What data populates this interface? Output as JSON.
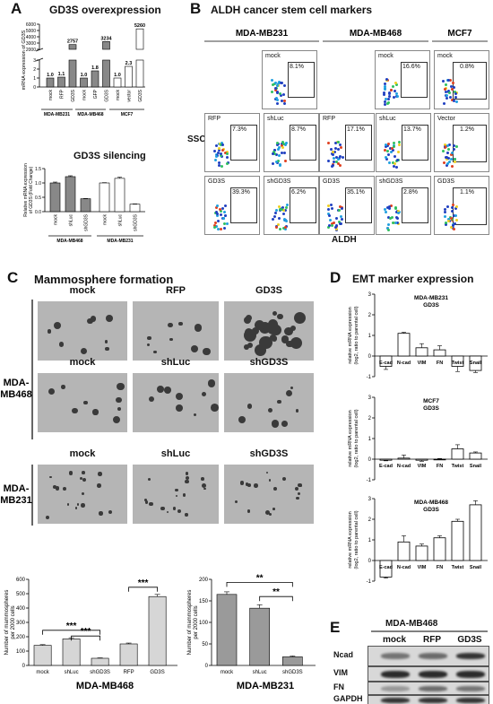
{
  "panels": {
    "A": {
      "label": "A",
      "overexpression": {
        "title": "GD3S overexpression",
        "ylabel": "mRNA expression of GD3S",
        "groups": [
          "MDA-MB231",
          "MDA-MB468",
          "MCF7"
        ],
        "chart_data": {
          "type": "bar",
          "categories": [
            "mock",
            "RFP",
            "GD3S",
            "mock",
            "GFP",
            "GD3S",
            "mock",
            "vector",
            "GD3S"
          ],
          "values": [
            1.0,
            1.1,
            2757,
            1.0,
            1.8,
            3234,
            1.0,
            2.3,
            5260
          ],
          "data_labels": [
            "1.0",
            "1.1",
            "2757",
            "1.0",
            "1.8",
            "3234",
            "1.0",
            "2.3",
            "5260"
          ],
          "bar_colors": [
            "#888888",
            "#888888",
            "#888888",
            "#888888",
            "#888888",
            "#888888",
            "#ffffff",
            "#ffffff",
            "#ffffff"
          ],
          "lower_ticks": [
            "0",
            "1",
            "2",
            "3"
          ],
          "upper_ticks": [
            "2000",
            "3000",
            "4000",
            "5000",
            "6000"
          ],
          "axis_break": true
        }
      },
      "silencing": {
        "title": "GD3S silencing",
        "ylabel": "Relative mRNA expression of GD3S (Fold Change)",
        "groups": [
          "MDA-MB468",
          "MDA-MB231"
        ],
        "chart_data": {
          "type": "bar",
          "categories": [
            "mock",
            "shLuc",
            "shGD3S",
            "mock",
            "shLuc",
            "shGD3S"
          ],
          "values": [
            1.0,
            1.22,
            0.45,
            1.0,
            1.16,
            0.26
          ],
          "errors": [
            0.03,
            0.03,
            0.01,
            0.01,
            0.04,
            0.01
          ],
          "bar_colors": [
            "#888888",
            "#888888",
            "#888888",
            "#ffffff",
            "#ffffff",
            "#ffffff"
          ],
          "yticks": [
            "0.0",
            "0.5",
            "1.0",
            "1.5"
          ],
          "ylim": [
            0,
            1.5
          ]
        }
      }
    },
    "B": {
      "label": "B",
      "title": "ALDH cancer stem cell markers",
      "xlabel": "ALDH",
      "ylabel": "SSC",
      "cols": [
        "MDA-MB231",
        "MDA-MB468",
        "MCF7"
      ],
      "axis_x": "FITC-A :: FITC - Area",
      "axis_y": "SSC-A :: SSC - Area",
      "rows": [
        [
          {
            "label": "mock",
            "pct": "8.1%"
          },
          {
            "label": "mock",
            "pct": "16.6%"
          },
          {
            "label": "mock",
            "pct": "0.8%"
          }
        ],
        [
          {
            "label": "RFP",
            "pct": "7.3%"
          },
          {
            "label": "shLuc",
            "pct": "8.7%"
          },
          {
            "label": "RFP",
            "pct": "17.1%"
          },
          {
            "label": "shLuc",
            "pct": "13.7%"
          },
          {
            "label": "Vector",
            "pct": "1.2%"
          }
        ],
        [
          {
            "label": "GD3S",
            "pct": "39.3%"
          },
          {
            "label": "shGD3S",
            "pct": "6.2%"
          },
          {
            "label": "GD3S",
            "pct": "35.1%"
          },
          {
            "label": "shGD3S",
            "pct": "2.8%"
          },
          {
            "label": "GD3S",
            "pct": "1.1%"
          }
        ]
      ]
    },
    "C": {
      "label": "C",
      "title": "Mammosphere formation",
      "row_groups": [
        "MDA-MB468",
        "MDA-MB231"
      ],
      "image_rows": [
        [
          "mock",
          "RFP",
          "GD3S"
        ],
        [
          "mock",
          "shLuc",
          "shGD3S"
        ],
        [
          "mock",
          "shLuc",
          "shGD3S"
        ]
      ],
      "charts": [
        {
          "ylabel": "Number of mammospheres per 2000 cells",
          "xlabel": "MDA-MB468",
          "significance": [
            "***",
            "***",
            "***"
          ],
          "chart_data": {
            "type": "bar",
            "categories": [
              "mock",
              "shLuc",
              "shGD3S",
              "RFP",
              "GD3S"
            ],
            "values": [
              140,
              185,
              50,
              150,
              480
            ],
            "errors": [
              5,
              8,
              3,
              6,
              15
            ],
            "yticks": [
              "0",
              "100",
              "200",
              "300",
              "400",
              "500",
              "600"
            ],
            "ylim": [
              0,
              600
            ]
          }
        },
        {
          "ylabel": "Number of mammospheres per 2000 cells",
          "xlabel": "MDA-MB231",
          "significance": [
            "**",
            "**"
          ],
          "chart_data": {
            "type": "bar",
            "categories": [
              "mock",
              "shLuc",
              "shGD3S"
            ],
            "values": [
              165,
              133,
              20
            ],
            "errors": [
              6,
              8,
              2
            ],
            "yticks": [
              "0",
              "50",
              "100",
              "150",
              "200"
            ],
            "ylim": [
              0,
              200
            ]
          }
        }
      ]
    },
    "D": {
      "label": "D",
      "title": "EMT marker expression",
      "ylabel": "relative mRNA expression (log2, ratio to parental cell)",
      "charts": [
        {
          "title_line1": "MDA-MB231",
          "title_line2": "GD3S",
          "chart_data": {
            "type": "bar",
            "categories": [
              "E-cad",
              "N-cad",
              "VIM",
              "FN",
              "Twist",
              "Snail"
            ],
            "values": [
              -0.5,
              1.1,
              0.4,
              0.3,
              -0.5,
              -0.7
            ],
            "errors": [
              0.15,
              0.05,
              0.2,
              0.2,
              0.25,
              0.1
            ],
            "yticks": [
              "-1",
              "0",
              "1",
              "2",
              "3"
            ],
            "ylim": [
              -1,
              3
            ]
          }
        },
        {
          "title_line1": "MCF7",
          "title_line2": "GD3S",
          "chart_data": {
            "type": "bar",
            "categories": [
              "E-cad",
              "N-cad",
              "VIM",
              "FN",
              "Twist",
              "Snail"
            ],
            "values": [
              -0.05,
              0.05,
              -0.05,
              0.0,
              0.5,
              0.3
            ],
            "errors": [
              0.03,
              0.15,
              0.05,
              0.03,
              0.2,
              0.05
            ],
            "yticks": [
              "-1",
              "0",
              "1",
              "2",
              "3"
            ],
            "ylim": [
              -1,
              3
            ]
          }
        },
        {
          "title_line1": "MDA-MB468",
          "title_line2": "GD3S",
          "chart_data": {
            "type": "bar",
            "categories": [
              "E-cad",
              "N-cad",
              "VIM",
              "FN",
              "Twist",
              "Snail"
            ],
            "values": [
              -0.8,
              0.9,
              0.7,
              1.1,
              1.9,
              2.7
            ],
            "errors": [
              0.05,
              0.3,
              0.1,
              0.1,
              0.1,
              0.2
            ],
            "yticks": [
              "-1",
              "0",
              "1",
              "2",
              "3"
            ],
            "ylim": [
              -1,
              3
            ]
          }
        }
      ]
    },
    "E": {
      "label": "E",
      "cell_line": "MDA-MB468",
      "lanes": [
        "mock",
        "RFP",
        "GD3S"
      ],
      "rows": [
        "Ncad",
        "VIM",
        "FN",
        "GAPDH"
      ]
    }
  }
}
